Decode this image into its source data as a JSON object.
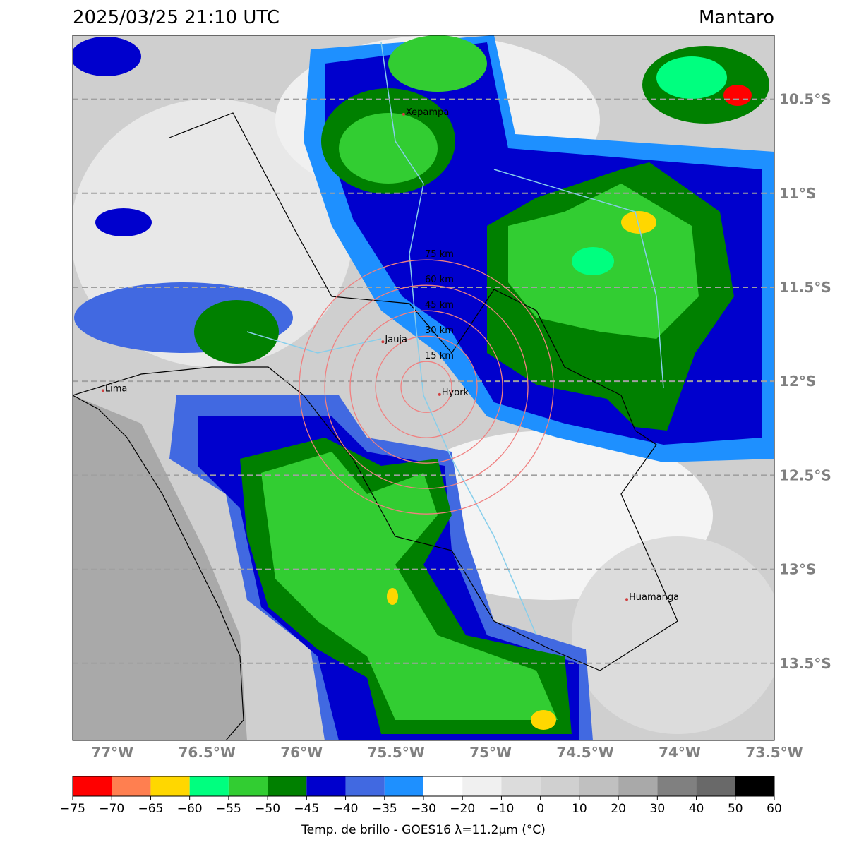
{
  "header": {
    "title": "2025/03/25 21:10 UTC",
    "region": "Mantaro"
  },
  "map": {
    "lon_range": [
      -77.21,
      -73.5
    ],
    "lat_range": [
      -13.91,
      -10.16
    ],
    "lon_ticks": [
      {
        "value": -77,
        "label": "77°W"
      },
      {
        "value": -76.5,
        "label": "76.5°W"
      },
      {
        "value": -76,
        "label": "76°W"
      },
      {
        "value": -75.5,
        "label": "75.5°W"
      },
      {
        "value": -75,
        "label": "75°W"
      },
      {
        "value": -74.5,
        "label": "74.5°W"
      },
      {
        "value": -74,
        "label": "74°W"
      },
      {
        "value": -73.5,
        "label": "73.5°W"
      }
    ],
    "lat_ticks": [
      {
        "value": -10.5,
        "label": "10.5°S"
      },
      {
        "value": -11,
        "label": "11°S"
      },
      {
        "value": -11.5,
        "label": "11.5°S"
      },
      {
        "value": -12,
        "label": "12°S"
      },
      {
        "value": -12.5,
        "label": "12.5°S"
      },
      {
        "value": -13,
        "label": "13°S"
      },
      {
        "value": -13.5,
        "label": "13.5°S"
      }
    ],
    "center": {
      "lon": -75.34,
      "lat": -12.03
    },
    "rings": [
      {
        "radius_km": 15,
        "label": "15 km"
      },
      {
        "radius_km": 30,
        "label": "30 km"
      },
      {
        "radius_km": 45,
        "label": "45 km"
      },
      {
        "radius_km": 60,
        "label": "60 km"
      },
      {
        "radius_km": 75,
        "label": "75 km"
      }
    ],
    "places": [
      {
        "name": "Xepampa",
        "lon": -75.46,
        "lat": -10.58
      },
      {
        "name": "Jauja",
        "lon": -75.57,
        "lat": -11.79
      },
      {
        "name": "Hyork",
        "lon": -75.27,
        "lat": -12.07
      },
      {
        "name": "Lima",
        "lon": -77.05,
        "lat": -12.05
      },
      {
        "name": "Huamanga",
        "lon": -74.28,
        "lat": -13.16
      }
    ]
  },
  "colorbar": {
    "label": "Temp. de brillo - GOES16 λ=11.2μm (°C)",
    "colors": [
      "#ff0000",
      "#ff7f50",
      "#ffd700",
      "#00ff7f",
      "#32cd32",
      "#008000",
      "#0000cd",
      "#4169e1",
      "#1e90ff",
      "#ffffff",
      "#f0f0f0",
      "#dcdcdc",
      "#d0d0d0",
      "#c0c0c0",
      "#a9a9a9",
      "#808080",
      "#696969",
      "#000000"
    ],
    "ticks": [
      {
        "value": -75,
        "label": "−75"
      },
      {
        "value": -70,
        "label": "−70"
      },
      {
        "value": -65,
        "label": "−65"
      },
      {
        "value": -60,
        "label": "−60"
      },
      {
        "value": -55,
        "label": "−55"
      },
      {
        "value": -50,
        "label": "−50"
      },
      {
        "value": -45,
        "label": "−45"
      },
      {
        "value": -40,
        "label": "−40"
      },
      {
        "value": -35,
        "label": "−35"
      },
      {
        "value": -30,
        "label": "−30"
      },
      {
        "value": -20,
        "label": "−20"
      },
      {
        "value": -10,
        "label": "−10"
      },
      0,
      10,
      20,
      30,
      40,
      50,
      60
    ]
  }
}
